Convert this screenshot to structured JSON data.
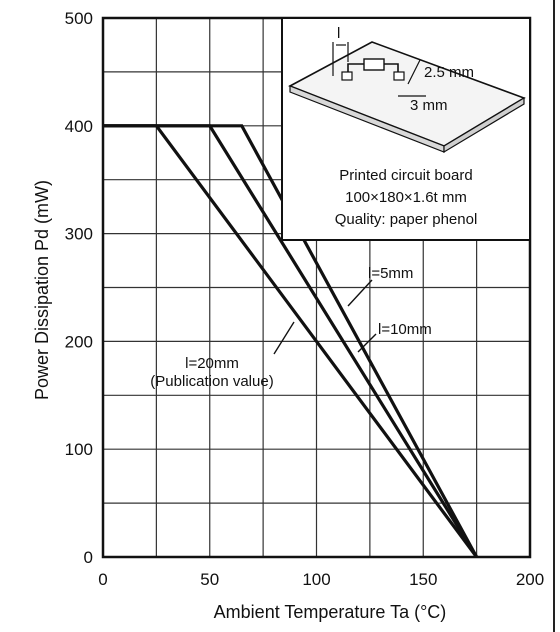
{
  "chart_data": {
    "type": "line",
    "xlabel": "Ambient Temperature Ta (°C)",
    "ylabel": "Power Dissipation Pd (mW)",
    "ylabel_sub": "d",
    "xlim": [
      0,
      200
    ],
    "ylim": [
      0,
      500
    ],
    "x_ticks": [
      0,
      50,
      100,
      150,
      200
    ],
    "y_ticks": [
      0,
      100,
      200,
      300,
      400,
      500
    ],
    "grid": true,
    "series": [
      {
        "name": "l=5mm",
        "x": [
          0,
          65,
          175
        ],
        "y": [
          400,
          400,
          0
        ]
      },
      {
        "name": "l=10mm",
        "x": [
          0,
          50,
          175
        ],
        "y": [
          400,
          400,
          0
        ]
      },
      {
        "name": "l=20mm (Publication value)",
        "x": [
          0,
          25,
          175
        ],
        "y": [
          400,
          400,
          0
        ]
      }
    ],
    "annotations": {
      "l5": "l=5mm",
      "l10": "l=10mm",
      "l20_line1": "l=20mm",
      "l20_line2": "(Publication value)"
    },
    "inset": {
      "l_label": "l",
      "dim1": "2.5 mm",
      "dim2": "3 mm",
      "line1": "Printed circuit board",
      "line2": "100×180×1.6t mm",
      "line3": "Quality: paper phenol"
    }
  }
}
